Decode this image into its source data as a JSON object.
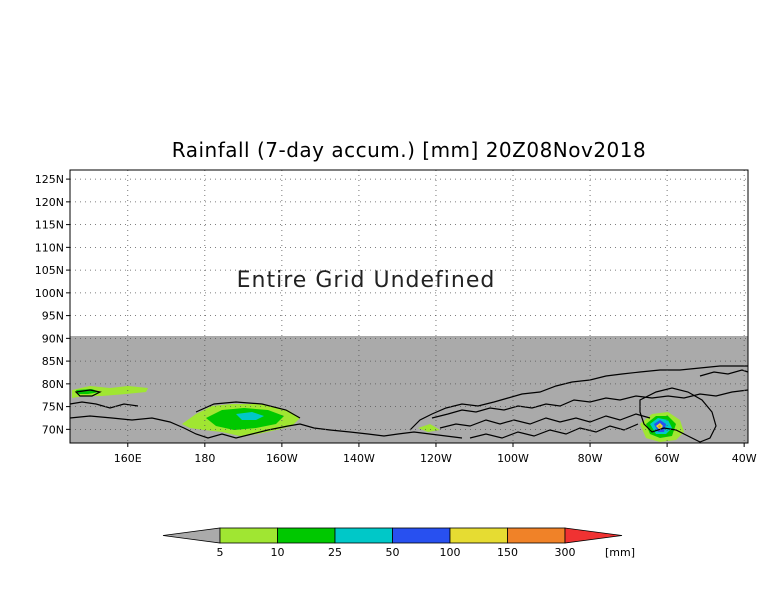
{
  "map": {
    "title": "Rainfall (7-day accum.) [mm] 20Z08Nov2018",
    "undefined_text": "Entire Grid Undefined",
    "lat_labels": [
      "125N",
      "120N",
      "115N",
      "110N",
      "105N",
      "100N",
      "95N",
      "90N",
      "85N",
      "80N",
      "75N",
      "70N"
    ],
    "lat_values": [
      125,
      120,
      115,
      110,
      105,
      100,
      95,
      90,
      85,
      80,
      75,
      70
    ],
    "lon_labels": [
      "160E",
      "180",
      "160W",
      "140W",
      "120W",
      "100W",
      "80W",
      "60W",
      "40W"
    ],
    "lon_values": [
      160,
      180,
      200,
      220,
      240,
      260,
      280,
      300,
      320
    ],
    "lon_range_east": [
      145,
      321
    ],
    "lat_range": [
      67,
      127
    ],
    "data_lat_max": 90,
    "undefined_color": "#aaaaaa",
    "coast_color": "#000000"
  },
  "colorbar": {
    "unit": "[mm]",
    "below_color": "#aaaaaa",
    "above_color": "#f03232",
    "bins": [
      {
        "label": "5",
        "color": "#a0e632"
      },
      {
        "label": "10",
        "color": "#00c800"
      },
      {
        "label": "25",
        "color": "#00c8c8"
      },
      {
        "label": "50",
        "color": "#2850f0"
      },
      {
        "label": "100",
        "color": "#e6dc32"
      },
      {
        "label": "150",
        "color": "#f08228"
      },
      {
        "label": "300",
        "color": null
      }
    ]
  }
}
